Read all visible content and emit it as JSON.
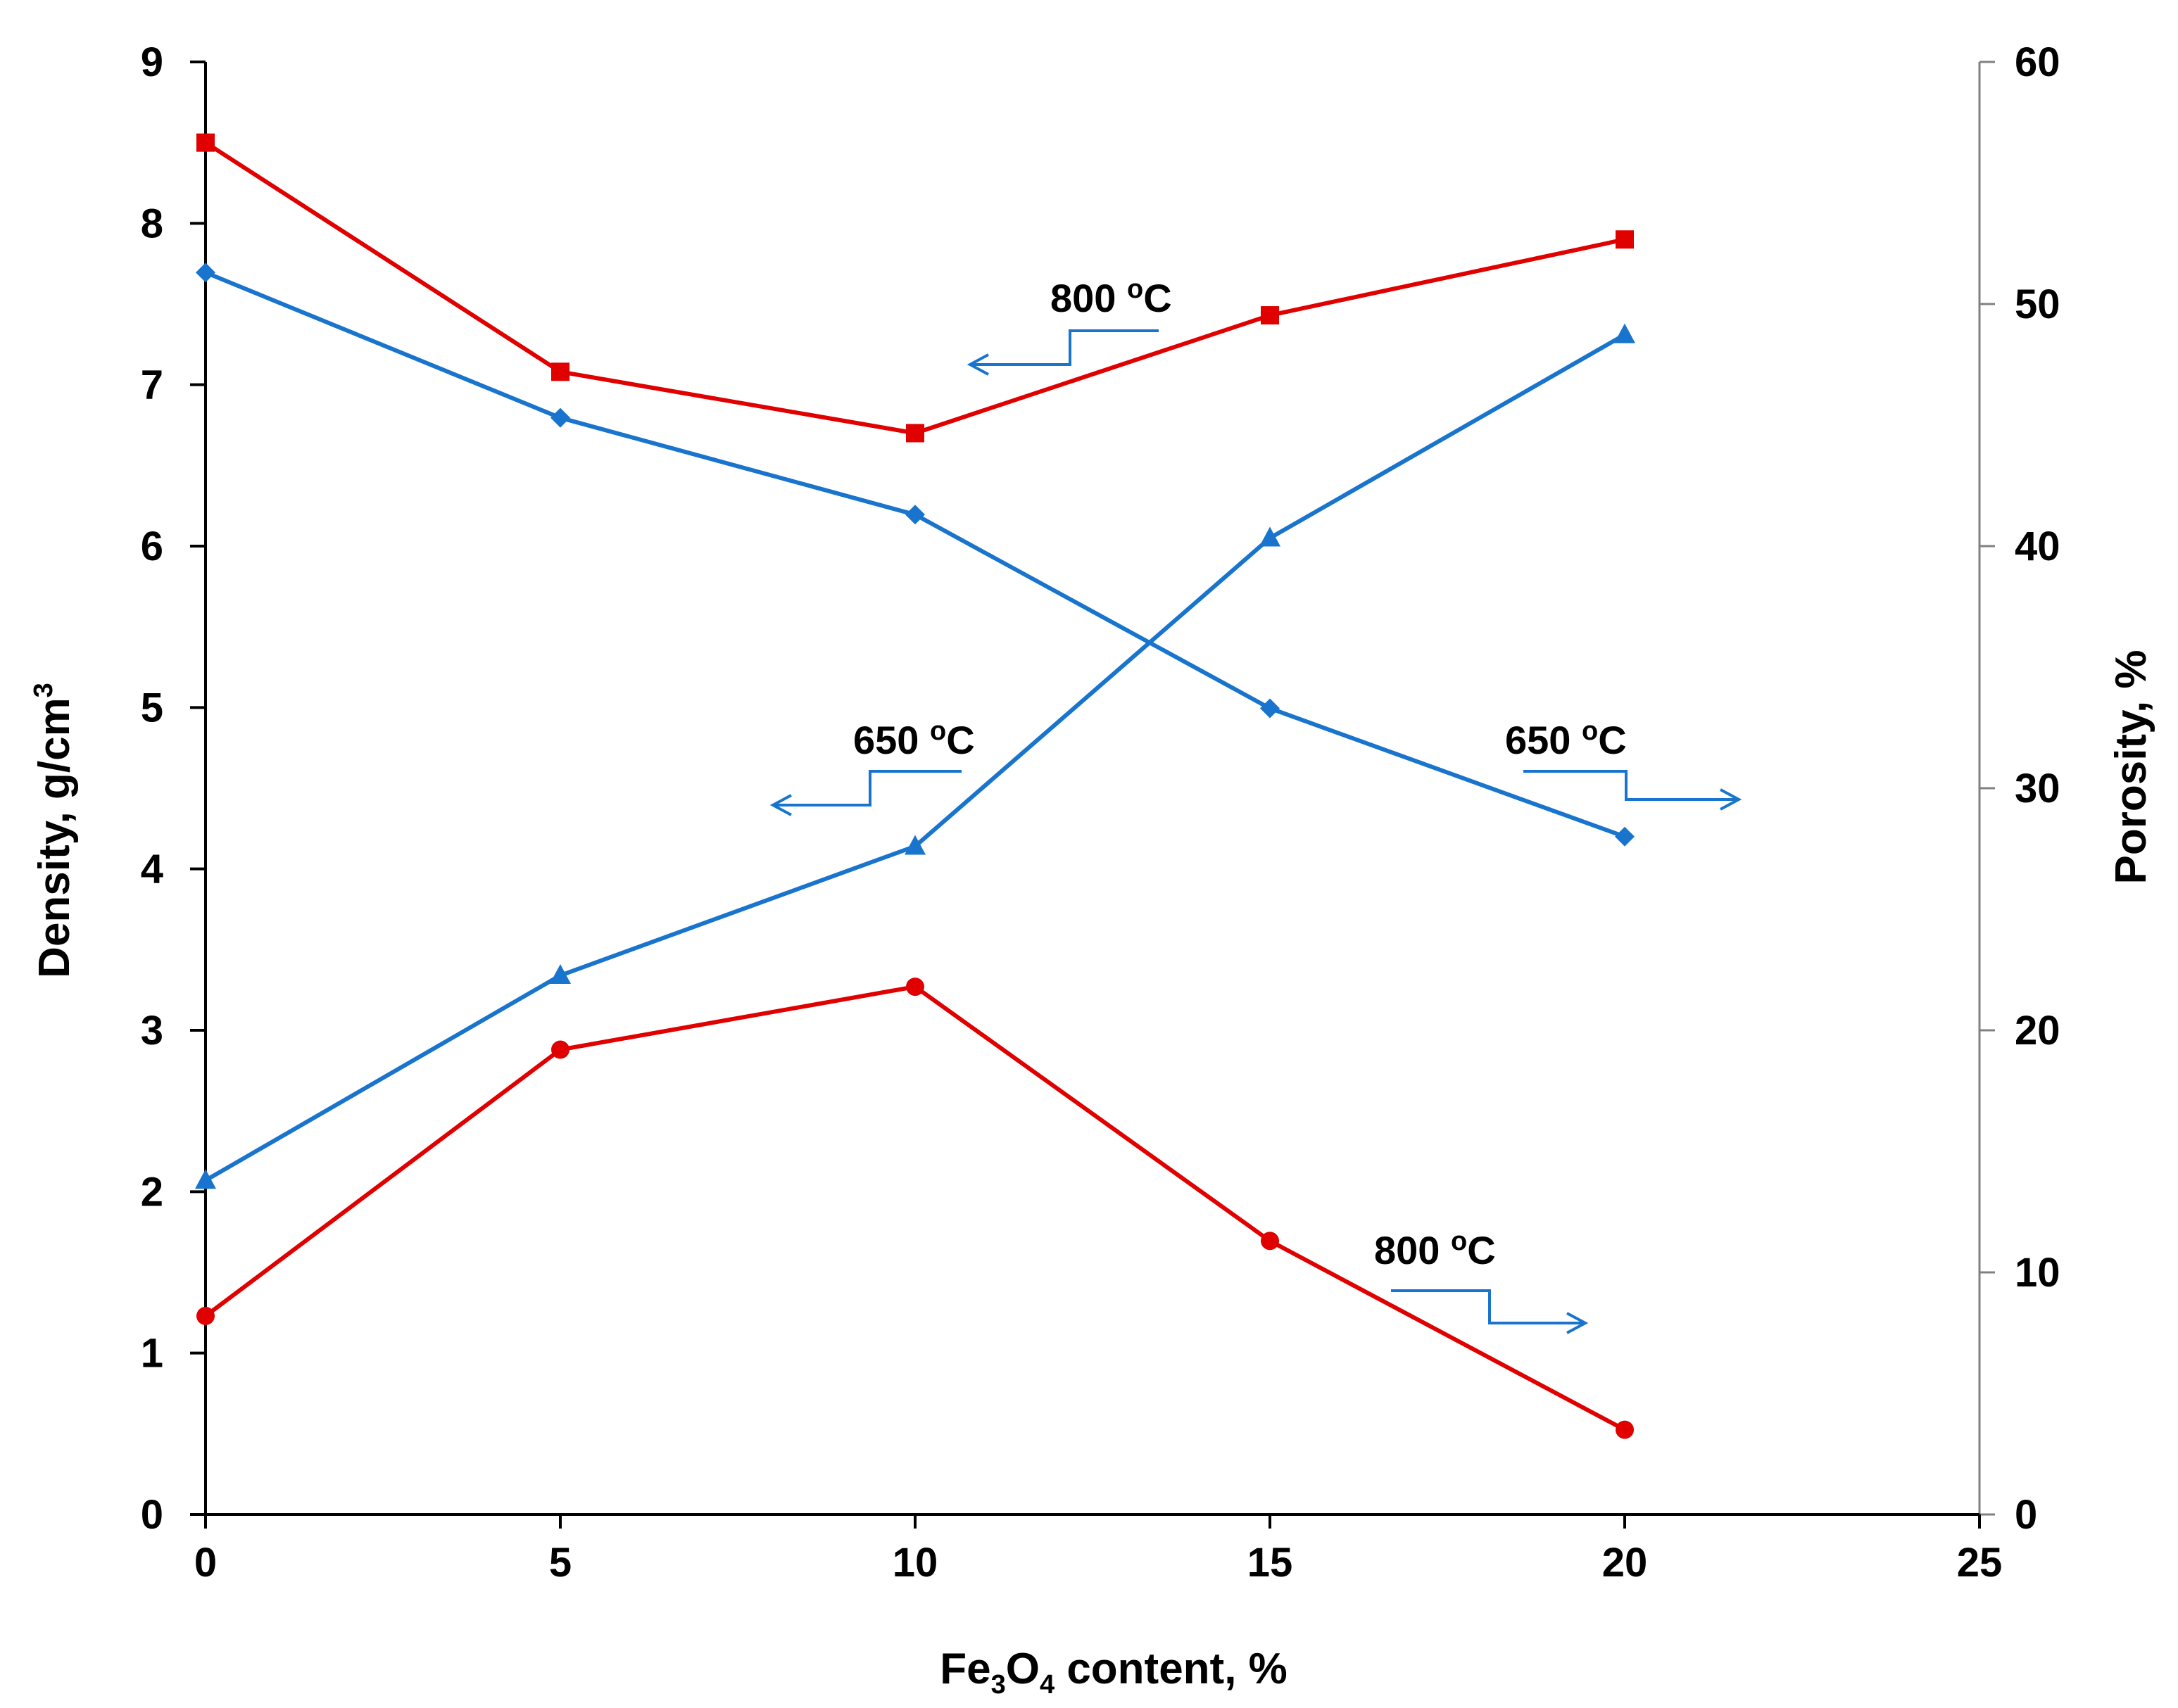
{
  "chart_data": {
    "type": "line",
    "x_axis": {
      "label_parts": [
        "Fe",
        "3",
        "O",
        "4",
        " content, %"
      ],
      "range": [
        0,
        25
      ],
      "ticks": [
        0,
        5,
        10,
        15,
        20,
        25
      ]
    },
    "y_left": {
      "label_parts": [
        "Density, g/cm",
        "3"
      ],
      "range": [
        0,
        9
      ],
      "ticks": [
        0,
        1,
        2,
        3,
        4,
        5,
        6,
        7,
        8,
        9
      ]
    },
    "y_right": {
      "label": "Porosity, %",
      "range": [
        0,
        60
      ],
      "ticks": [
        0,
        10,
        20,
        30,
        40,
        50,
        60
      ]
    },
    "series": [
      {
        "name": "Density 800 °C",
        "axis": "left",
        "color": "#e00000",
        "marker": "square",
        "x": [
          0,
          5,
          10,
          15,
          20
        ],
        "y": [
          8.5,
          7.08,
          6.7,
          7.43,
          7.9
        ]
      },
      {
        "name": "Density 650 °C",
        "axis": "left",
        "color": "#1874cd",
        "marker": "triangle",
        "x": [
          0,
          5,
          10,
          15,
          20
        ],
        "y": [
          2.07,
          3.34,
          4.14,
          6.05,
          7.31
        ]
      },
      {
        "name": "Porosity 650 °C",
        "axis": "right",
        "color": "#1874cd",
        "marker": "diamond",
        "x": [
          0,
          5,
          10,
          15,
          20
        ],
        "y": [
          51.3,
          45.3,
          41.3,
          33.3,
          28.0
        ]
      },
      {
        "name": "Porosity 800 °C",
        "axis": "right",
        "color": "#e00000",
        "marker": "circle",
        "x": [
          0,
          5,
          10,
          15,
          20
        ],
        "y": [
          8.2,
          19.2,
          21.8,
          11.3,
          3.5
        ]
      }
    ],
    "annotations": [
      {
        "id": "ann-800-density",
        "temp": "800 ",
        "sup": "o",
        "unit": "C",
        "points_to": "left"
      },
      {
        "id": "ann-650-density",
        "temp": "650 ",
        "sup": "o",
        "unit": "C",
        "points_to": "left"
      },
      {
        "id": "ann-650-porosity",
        "temp": "650 ",
        "sup": "o",
        "unit": "C",
        "points_to": "right"
      },
      {
        "id": "ann-800-porosity",
        "temp": "800 ",
        "sup": "o",
        "unit": "C",
        "points_to": "right"
      }
    ]
  }
}
